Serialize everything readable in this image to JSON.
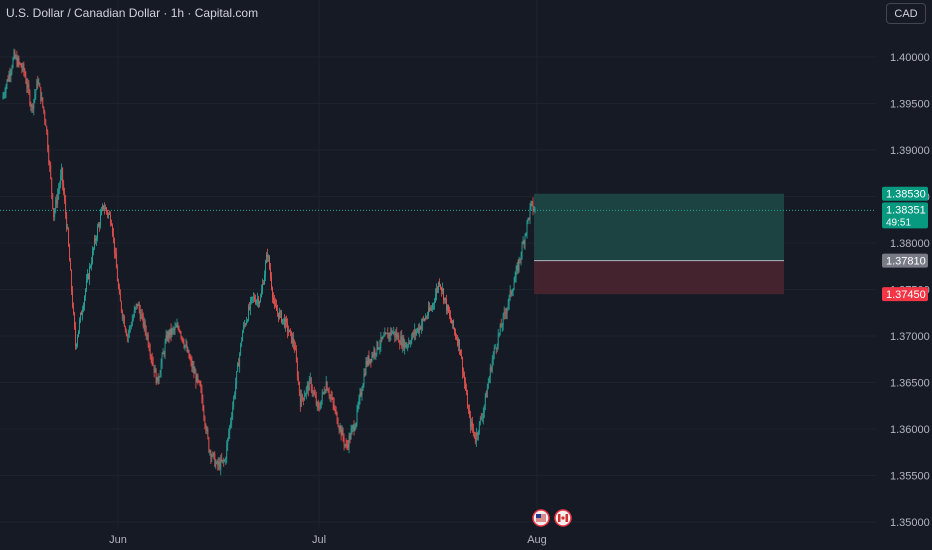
{
  "header": {
    "title": "U.S. Dollar / Canadian Dollar · 1h · Capital.com",
    "currency_button": "CAD"
  },
  "colors": {
    "background": "#161a25",
    "grid": "#1e222d",
    "up": "#26a69a",
    "down": "#ef5350",
    "axis_text": "#b2b5be",
    "profit_zone": "#1d4a47",
    "loss_zone": "#4a2530",
    "entry_label_bg": "#787b86",
    "stop_label_bg": "#f23645",
    "target_label_bg": "#089981",
    "last_price_bg": "#089981"
  },
  "chart_data": {
    "type": "candlestick",
    "title": "U.S. Dollar / Canadian Dollar · 1h · Capital.com",
    "ylim": [
      1.3495,
      1.4055
    ],
    "y_ticks": [
      "1.40000",
      "1.39500",
      "1.39000",
      "1.38500",
      "1.38000",
      "1.37500",
      "1.37000",
      "1.36500",
      "1.36000",
      "1.35500",
      "1.35000"
    ],
    "x_ticks": [
      "Jun",
      "Jul",
      "Aug"
    ],
    "close_path": [
      {
        "t": 0,
        "p": 1.3955
      },
      {
        "t": 12,
        "p": 1.4
      },
      {
        "t": 22,
        "p": 1.3985
      },
      {
        "t": 30,
        "p": 1.3945
      },
      {
        "t": 36,
        "p": 1.3975
      },
      {
        "t": 44,
        "p": 1.393
      },
      {
        "t": 52,
        "p": 1.383
      },
      {
        "t": 60,
        "p": 1.3875
      },
      {
        "t": 66,
        "p": 1.381
      },
      {
        "t": 74,
        "p": 1.369
      },
      {
        "t": 84,
        "p": 1.375
      },
      {
        "t": 95,
        "p": 1.381
      },
      {
        "t": 102,
        "p": 1.384
      },
      {
        "t": 110,
        "p": 1.3825
      },
      {
        "t": 118,
        "p": 1.374
      },
      {
        "t": 126,
        "p": 1.37
      },
      {
        "t": 136,
        "p": 1.3735
      },
      {
        "t": 146,
        "p": 1.37
      },
      {
        "t": 156,
        "p": 1.365
      },
      {
        "t": 166,
        "p": 1.37
      },
      {
        "t": 178,
        "p": 1.371
      },
      {
        "t": 190,
        "p": 1.367
      },
      {
        "t": 200,
        "p": 1.364
      },
      {
        "t": 208,
        "p": 1.358
      },
      {
        "t": 216,
        "p": 1.356
      },
      {
        "t": 224,
        "p": 1.3565
      },
      {
        "t": 232,
        "p": 1.3625
      },
      {
        "t": 242,
        "p": 1.3705
      },
      {
        "t": 252,
        "p": 1.374
      },
      {
        "t": 260,
        "p": 1.374
      },
      {
        "t": 267,
        "p": 1.379
      },
      {
        "t": 274,
        "p": 1.373
      },
      {
        "t": 284,
        "p": 1.3715
      },
      {
        "t": 294,
        "p": 1.369
      },
      {
        "t": 300,
        "p": 1.363
      },
      {
        "t": 310,
        "p": 1.365
      },
      {
        "t": 318,
        "p": 1.362
      },
      {
        "t": 326,
        "p": 1.365
      },
      {
        "t": 336,
        "p": 1.3615
      },
      {
        "t": 346,
        "p": 1.358
      },
      {
        "t": 356,
        "p": 1.361
      },
      {
        "t": 366,
        "p": 1.367
      },
      {
        "t": 378,
        "p": 1.369
      },
      {
        "t": 392,
        "p": 1.3705
      },
      {
        "t": 406,
        "p": 1.369
      },
      {
        "t": 420,
        "p": 1.371
      },
      {
        "t": 432,
        "p": 1.373
      },
      {
        "t": 440,
        "p": 1.376
      },
      {
        "t": 450,
        "p": 1.372
      },
      {
        "t": 460,
        "p": 1.369
      },
      {
        "t": 470,
        "p": 1.361
      },
      {
        "t": 476,
        "p": 1.359
      },
      {
        "t": 484,
        "p": 1.362
      },
      {
        "t": 494,
        "p": 1.368
      },
      {
        "t": 502,
        "p": 1.371
      },
      {
        "t": 510,
        "p": 1.374
      },
      {
        "t": 518,
        "p": 1.377
      },
      {
        "t": 526,
        "p": 1.381
      },
      {
        "t": 532,
        "p": 1.384
      },
      {
        "t": 536,
        "p": 1.38351
      }
    ],
    "position_tool": {
      "target": 1.3853,
      "entry": 1.3781,
      "stop": 1.3745
    },
    "last_price": 1.38351,
    "countdown": "49:51",
    "price_labels": {
      "target": "1.38530",
      "last": "1.38351",
      "entry": "1.37810",
      "stop": "1.37450"
    },
    "event_icons": [
      "us-flag-icon",
      "ca-flag-icon"
    ]
  }
}
